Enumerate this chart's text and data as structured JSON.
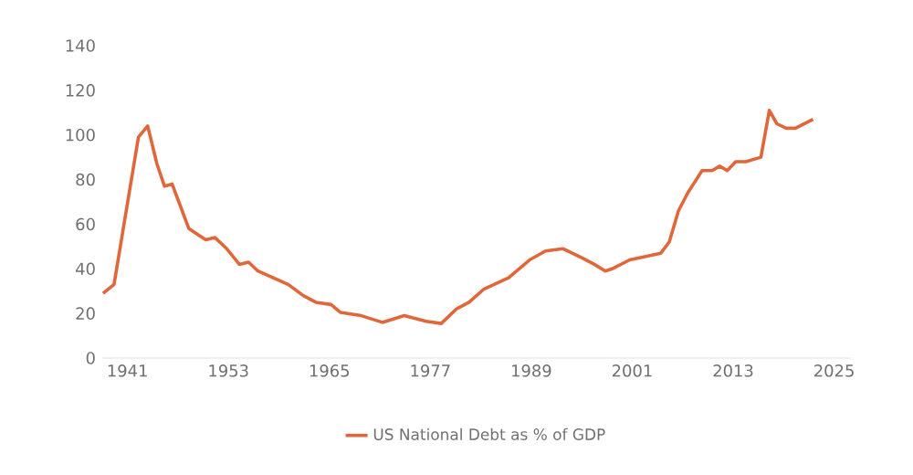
{
  "chart_data": {
    "type": "line",
    "x": [
      1938.1,
      1939.4,
      1942.3,
      1943.4,
      1944.5,
      1945.4,
      1946.3,
      1947.1,
      1948.3,
      1950.3,
      1951.4,
      1952.8,
      1954.3,
      1955.4,
      1956.5,
      1960.1,
      1961.9,
      1963.4,
      1965.2,
      1966.3,
      1968.8,
      1971.3,
      1973.9,
      1976.5,
      1978.3,
      1980.1,
      1981.6,
      1983.4,
      1986.3,
      1988.8,
      1990.7,
      1992.8,
      1995.0,
      1996.5,
      1997.8,
      1998.6,
      2000.7,
      2004.4,
      2005.4,
      2006.5,
      2007.6,
      2009.3,
      2010.5,
      2011.4,
      2012.3,
      2013.3,
      2014.5,
      2016.3,
      2017.3,
      2018.2,
      2019.3,
      2020.4,
      2022.5
    ],
    "series": [
      {
        "name": "US National Debt as % of GDP",
        "color": "#e0673a",
        "values": [
          29,
          33,
          99,
          104,
          87,
          77,
          78,
          70,
          58,
          53,
          54,
          49,
          42,
          43,
          39,
          33,
          28,
          25,
          24,
          20.5,
          19,
          16,
          19,
          16.5,
          15.5,
          22,
          25,
          31,
          36,
          44,
          48,
          49,
          45,
          42,
          39,
          40,
          44,
          47,
          52,
          66,
          74,
          84,
          84,
          86,
          84,
          88,
          88,
          90,
          111,
          105,
          103,
          103,
          107
        ]
      }
    ],
    "xlim": [
      1938,
      2027
    ],
    "xticks": [
      1941,
      1953,
      1965,
      1977,
      1989,
      2001,
      2013,
      2025
    ],
    "ylim": [
      0,
      140
    ],
    "yticks": [
      0,
      20,
      40,
      60,
      80,
      100,
      120,
      140
    ],
    "grid": false,
    "legend": "bottom",
    "marker": "none",
    "line_style": "solid"
  }
}
